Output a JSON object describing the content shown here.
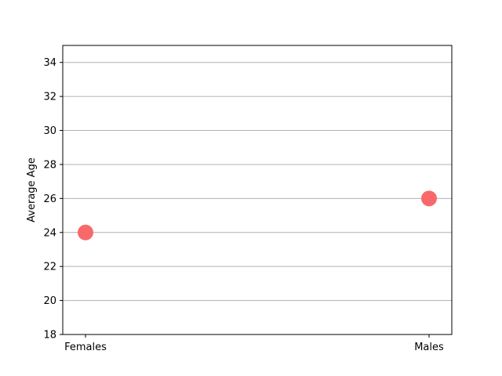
{
  "chart_data": {
    "type": "scatter",
    "title": "",
    "xlabel": "",
    "ylabel": "Average Age",
    "categories": [
      "Females",
      "Males"
    ],
    "values": [
      24,
      26
    ],
    "ylim": [
      18,
      35
    ],
    "yticks": [
      18,
      20,
      22,
      24,
      26,
      28,
      30,
      32,
      34
    ],
    "grid": {
      "y": true,
      "x": false
    },
    "legend": "none",
    "marker_color": "#f8696b",
    "grid_color": "#b0b0b0",
    "axis_color": "#000000"
  }
}
